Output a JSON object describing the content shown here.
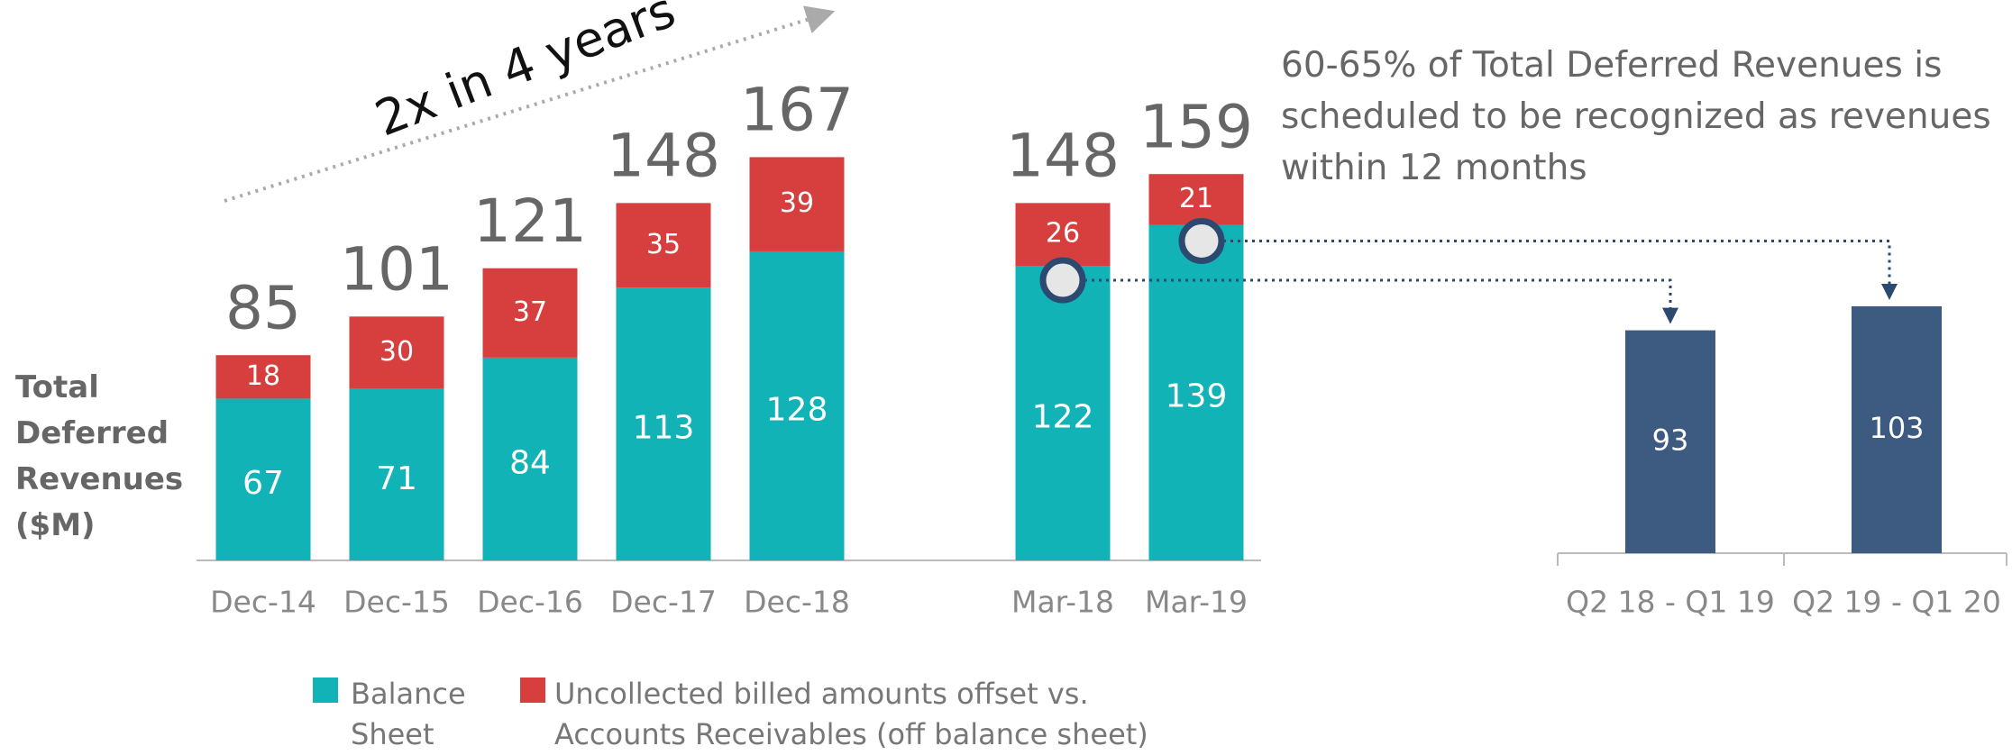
{
  "chart_data": [
    {
      "type": "bar",
      "stacked": true,
      "y_label": "Total Deferred Revenues ($M)",
      "annotation": "2x in 4 years",
      "categories": [
        "Dec-14",
        "Dec-15",
        "Dec-16",
        "Dec-17",
        "Dec-18",
        "Mar-18",
        "Mar-19"
      ],
      "series": [
        {
          "name": "Balance Sheet",
          "color": "#12b3b6",
          "values": [
            67,
            71,
            84,
            113,
            128,
            122,
            139
          ]
        },
        {
          "name": "Uncollected billed amounts offset vs. Accounts Receivables (off balance sheet)",
          "color": "#d63f3d",
          "values": [
            18,
            30,
            37,
            35,
            39,
            26,
            21
          ]
        }
      ],
      "totals": [
        85,
        101,
        121,
        148,
        167,
        148,
        159
      ],
      "ylim": [
        0,
        200
      ]
    },
    {
      "type": "bar",
      "annotation": "60-65% of Total Deferred Revenues is scheduled to be recognized as revenues within 12 months",
      "categories": [
        "Q2 18 - Q1 19",
        "Q2 19 - Q1 20"
      ],
      "values": [
        93,
        103
      ],
      "color": "#3d5a80",
      "ylim": [
        0,
        200
      ]
    }
  ]
}
